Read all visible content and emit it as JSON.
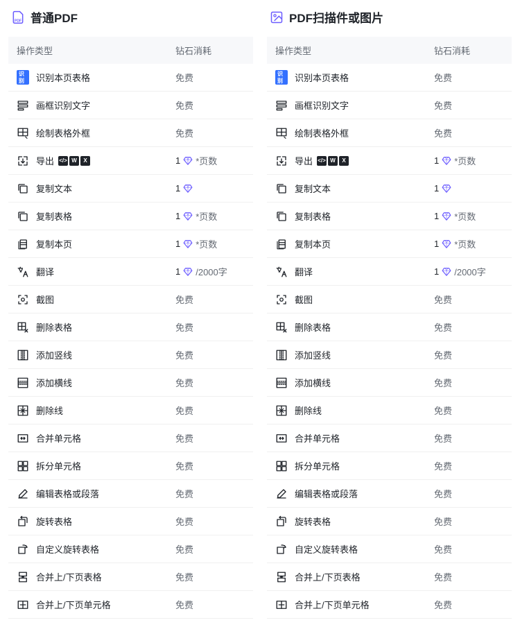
{
  "colors": {
    "accent": "#6b5cff",
    "text": "#1f2329",
    "muted": "#646a73",
    "headerBg": "#f7f8fa",
    "border": "#f0f0f0",
    "badge": "#3370ff"
  },
  "headers": {
    "op": "操作类型",
    "cost": "钻石消耗"
  },
  "free": "免费",
  "diamond_suffix_pages": "*页数",
  "diamond_suffix_chars": "/2000字",
  "panels": [
    {
      "title": "普通PDF",
      "icon": "pdf-file-icon",
      "rows": [
        {
          "icon": "recognize-badge",
          "label": "识别本页表格",
          "cost": "free"
        },
        {
          "icon": "ocr-box",
          "label": "画框识别文字",
          "cost": "free"
        },
        {
          "icon": "table-frame",
          "label": "绘制表格外框",
          "cost": "free"
        },
        {
          "icon": "export",
          "label": "导出",
          "export": true,
          "cost": "1",
          "suffix": "*页数"
        },
        {
          "icon": "copy-text",
          "label": "复制文本",
          "cost": "1"
        },
        {
          "icon": "copy-table",
          "label": "复制表格",
          "cost": "1",
          "suffix": "*页数"
        },
        {
          "icon": "copy-page",
          "label": "复制本页",
          "cost": "1",
          "suffix": "*页数"
        },
        {
          "icon": "translate",
          "label": "翻译",
          "cost": "1",
          "suffix": "/2000字"
        },
        {
          "icon": "screenshot",
          "label": "截图",
          "cost": "free"
        },
        {
          "icon": "delete-table",
          "label": "删除表格",
          "cost": "free"
        },
        {
          "icon": "add-vline",
          "label": "添加竖线",
          "cost": "free"
        },
        {
          "icon": "add-hline",
          "label": "添加横线",
          "cost": "free"
        },
        {
          "icon": "delete-line",
          "label": "删除线",
          "cost": "free"
        },
        {
          "icon": "merge-cell",
          "label": "合并单元格",
          "cost": "free"
        },
        {
          "icon": "split-cell",
          "label": "拆分单元格",
          "cost": "free"
        },
        {
          "icon": "edit",
          "label": "编辑表格或段落",
          "cost": "free"
        },
        {
          "icon": "rotate",
          "label": "旋转表格",
          "cost": "free"
        },
        {
          "icon": "rotate-custom",
          "label": "自定义旋转表格",
          "cost": "free"
        },
        {
          "icon": "merge-page-table",
          "label": "合并上/下页表格",
          "cost": "free"
        },
        {
          "icon": "merge-page-cell",
          "label": "合并上/下页单元格",
          "cost": "free"
        }
      ]
    },
    {
      "title": "PDF扫描件或图片",
      "icon": "pdf-image-icon",
      "rows": [
        {
          "icon": "recognize-badge",
          "label": "识别本页表格",
          "cost": "free"
        },
        {
          "icon": "ocr-box",
          "label": "画框识别文字",
          "cost": "free"
        },
        {
          "icon": "table-frame",
          "label": "绘制表格外框",
          "cost": "free"
        },
        {
          "icon": "export",
          "label": "导出",
          "export": true,
          "cost": "1",
          "suffix": "*页数"
        },
        {
          "icon": "copy-text",
          "label": "复制文本",
          "cost": "1"
        },
        {
          "icon": "copy-table",
          "label": "复制表格",
          "cost": "1",
          "suffix": "*页数"
        },
        {
          "icon": "copy-page",
          "label": "复制本页",
          "cost": "1",
          "suffix": "*页数"
        },
        {
          "icon": "translate",
          "label": "翻译",
          "cost": "1",
          "suffix": "/2000字"
        },
        {
          "icon": "screenshot",
          "label": "截图",
          "cost": "free"
        },
        {
          "icon": "delete-table",
          "label": "删除表格",
          "cost": "free"
        },
        {
          "icon": "add-vline",
          "label": "添加竖线",
          "cost": "free"
        },
        {
          "icon": "add-hline",
          "label": "添加横线",
          "cost": "free"
        },
        {
          "icon": "delete-line",
          "label": "删除线",
          "cost": "free"
        },
        {
          "icon": "merge-cell",
          "label": "合并单元格",
          "cost": "free"
        },
        {
          "icon": "split-cell",
          "label": "拆分单元格",
          "cost": "free"
        },
        {
          "icon": "edit",
          "label": "编辑表格或段落",
          "cost": "free"
        },
        {
          "icon": "rotate",
          "label": "旋转表格",
          "cost": "free"
        },
        {
          "icon": "rotate-custom",
          "label": "自定义旋转表格",
          "cost": "free"
        },
        {
          "icon": "merge-page-table",
          "label": "合并上/下页表格",
          "cost": "free"
        },
        {
          "icon": "merge-page-cell",
          "label": "合并上/下页单元格",
          "cost": "free"
        }
      ]
    }
  ]
}
